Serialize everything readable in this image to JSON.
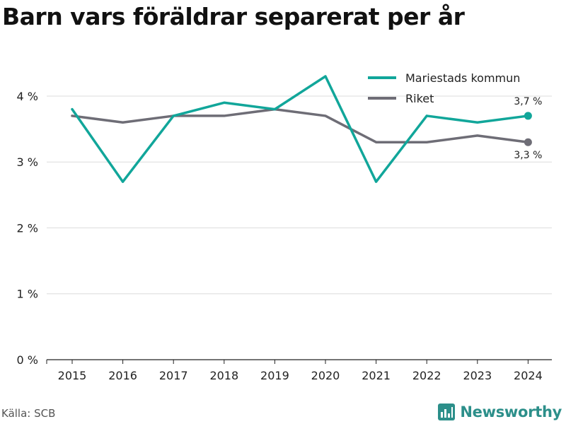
{
  "title": "Barn vars föräldrar separerat per år",
  "source": "Källa: SCB",
  "brand": {
    "name": "Newsworthy",
    "icon": "newsworthy-logo-icon",
    "color": "#2c8f8a"
  },
  "chart_data": {
    "type": "line",
    "x": [
      "2015",
      "2016",
      "2017",
      "2018",
      "2019",
      "2020",
      "2021",
      "2022",
      "2023",
      "2024"
    ],
    "ylim": [
      0,
      4.6
    ],
    "yticks": [
      0,
      1,
      2,
      3,
      4
    ],
    "ytick_labels": [
      "0 %",
      "1 %",
      "2 %",
      "3 %",
      "4 %"
    ],
    "grid": true,
    "legend_position": "top-right",
    "series": [
      {
        "name": "Mariestads kommun",
        "color": "#11a69a",
        "values": [
          3.8,
          2.7,
          3.7,
          3.9,
          3.8,
          4.3,
          2.7,
          3.7,
          3.6,
          3.7
        ],
        "end_label": "3,7 %"
      },
      {
        "name": "Riket",
        "color": "#6e6d76",
        "values": [
          3.7,
          3.6,
          3.7,
          3.7,
          3.8,
          3.7,
          3.3,
          3.3,
          3.4,
          3.3
        ],
        "end_label": "3,3 %"
      }
    ]
  }
}
